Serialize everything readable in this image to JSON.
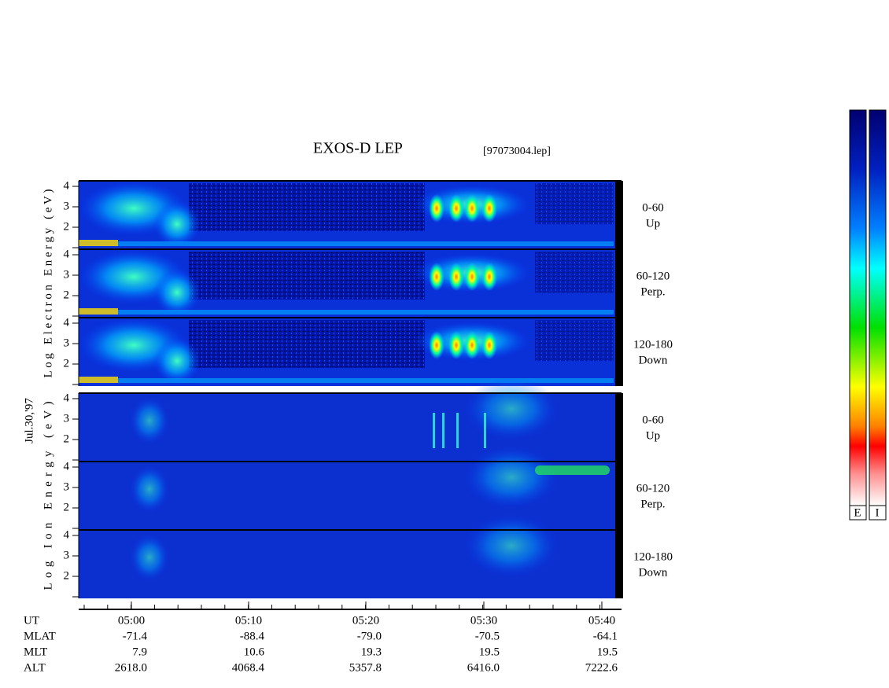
{
  "header": {
    "title": "EXOS-D LEP",
    "file": "[97073004.lep]"
  },
  "date": "Jul.30,'97",
  "electron": {
    "axis_label": "Log  Electron  Energy  (eV)",
    "panels": [
      {
        "ticks": [
          "4",
          "3",
          "2"
        ],
        "pitch": "0-60",
        "direction": "Up"
      },
      {
        "ticks": [
          "4",
          "3",
          "2"
        ],
        "pitch": "60-120",
        "direction": "Perp."
      },
      {
        "ticks": [
          "4",
          "3",
          "2"
        ],
        "pitch": "120-180",
        "direction": "Down"
      }
    ]
  },
  "ion": {
    "axis_label": "Log   Ion   Energy  (eV)",
    "panels": [
      {
        "ticks": [
          "4",
          "3",
          "2"
        ],
        "pitch": "0-60",
        "direction": "Up"
      },
      {
        "ticks": [
          "4",
          "3",
          "2"
        ],
        "pitch": "60-120",
        "direction": "Perp."
      },
      {
        "ticks": [
          "4",
          "3",
          "2"
        ],
        "pitch": "120-180",
        "direction": "Down"
      }
    ]
  },
  "time_axis": {
    "ticks": [
      "05:00",
      "05:10",
      "05:20",
      "05:30",
      "05:40"
    ]
  },
  "orbit": {
    "ut_label": "UT",
    "rows": [
      {
        "label": "MLAT",
        "values": [
          "-71.4",
          "-88.4",
          "-79.0",
          "-70.5",
          "-64.1"
        ]
      },
      {
        "label": "MLT",
        "values": [
          "7.9",
          "10.6",
          "19.3",
          "19.5",
          "19.5"
        ]
      },
      {
        "label": "ALT",
        "values": [
          "2618.0",
          "4068.4",
          "5357.8",
          "6416.0",
          "7222.6"
        ]
      }
    ]
  },
  "colorbars": [
    "E",
    "I"
  ]
}
